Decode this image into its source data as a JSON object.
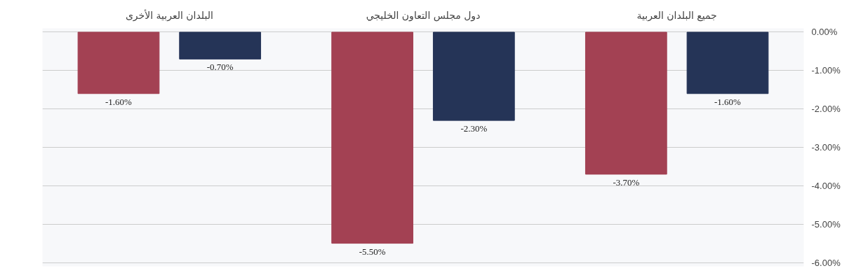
{
  "chart_data": {
    "type": "bar",
    "categories": [
      "البلدان العربية الأخرى",
      "دول مجلس التعاون الخليجي",
      "جميع البلدان العربية"
    ],
    "series": [
      {
        "color": "#a34153",
        "values": [
          -1.6,
          -5.5,
          -3.7
        ],
        "value_labels": [
          "-1.60%",
          "-5.50%",
          "-3.70%"
        ]
      },
      {
        "color": "#253457",
        "values": [
          -0.7,
          -2.3,
          -1.6
        ],
        "value_labels": [
          "-0.70%",
          "-2.30%",
          "-1.60%"
        ]
      }
    ],
    "ylim": [
      -6.1,
      0.1
    ],
    "yticks": [
      {
        "value": 0,
        "label": "0.00%"
      },
      {
        "value": -1,
        "label": "-1.00%"
      },
      {
        "value": -2,
        "label": "-2.00%"
      },
      {
        "value": -3,
        "label": "-3.00%"
      },
      {
        "value": -4,
        "label": "-4.00%"
      },
      {
        "value": -5,
        "label": "-5.00%"
      },
      {
        "value": -6,
        "label": "-6.00%"
      }
    ],
    "grid": "y"
  }
}
